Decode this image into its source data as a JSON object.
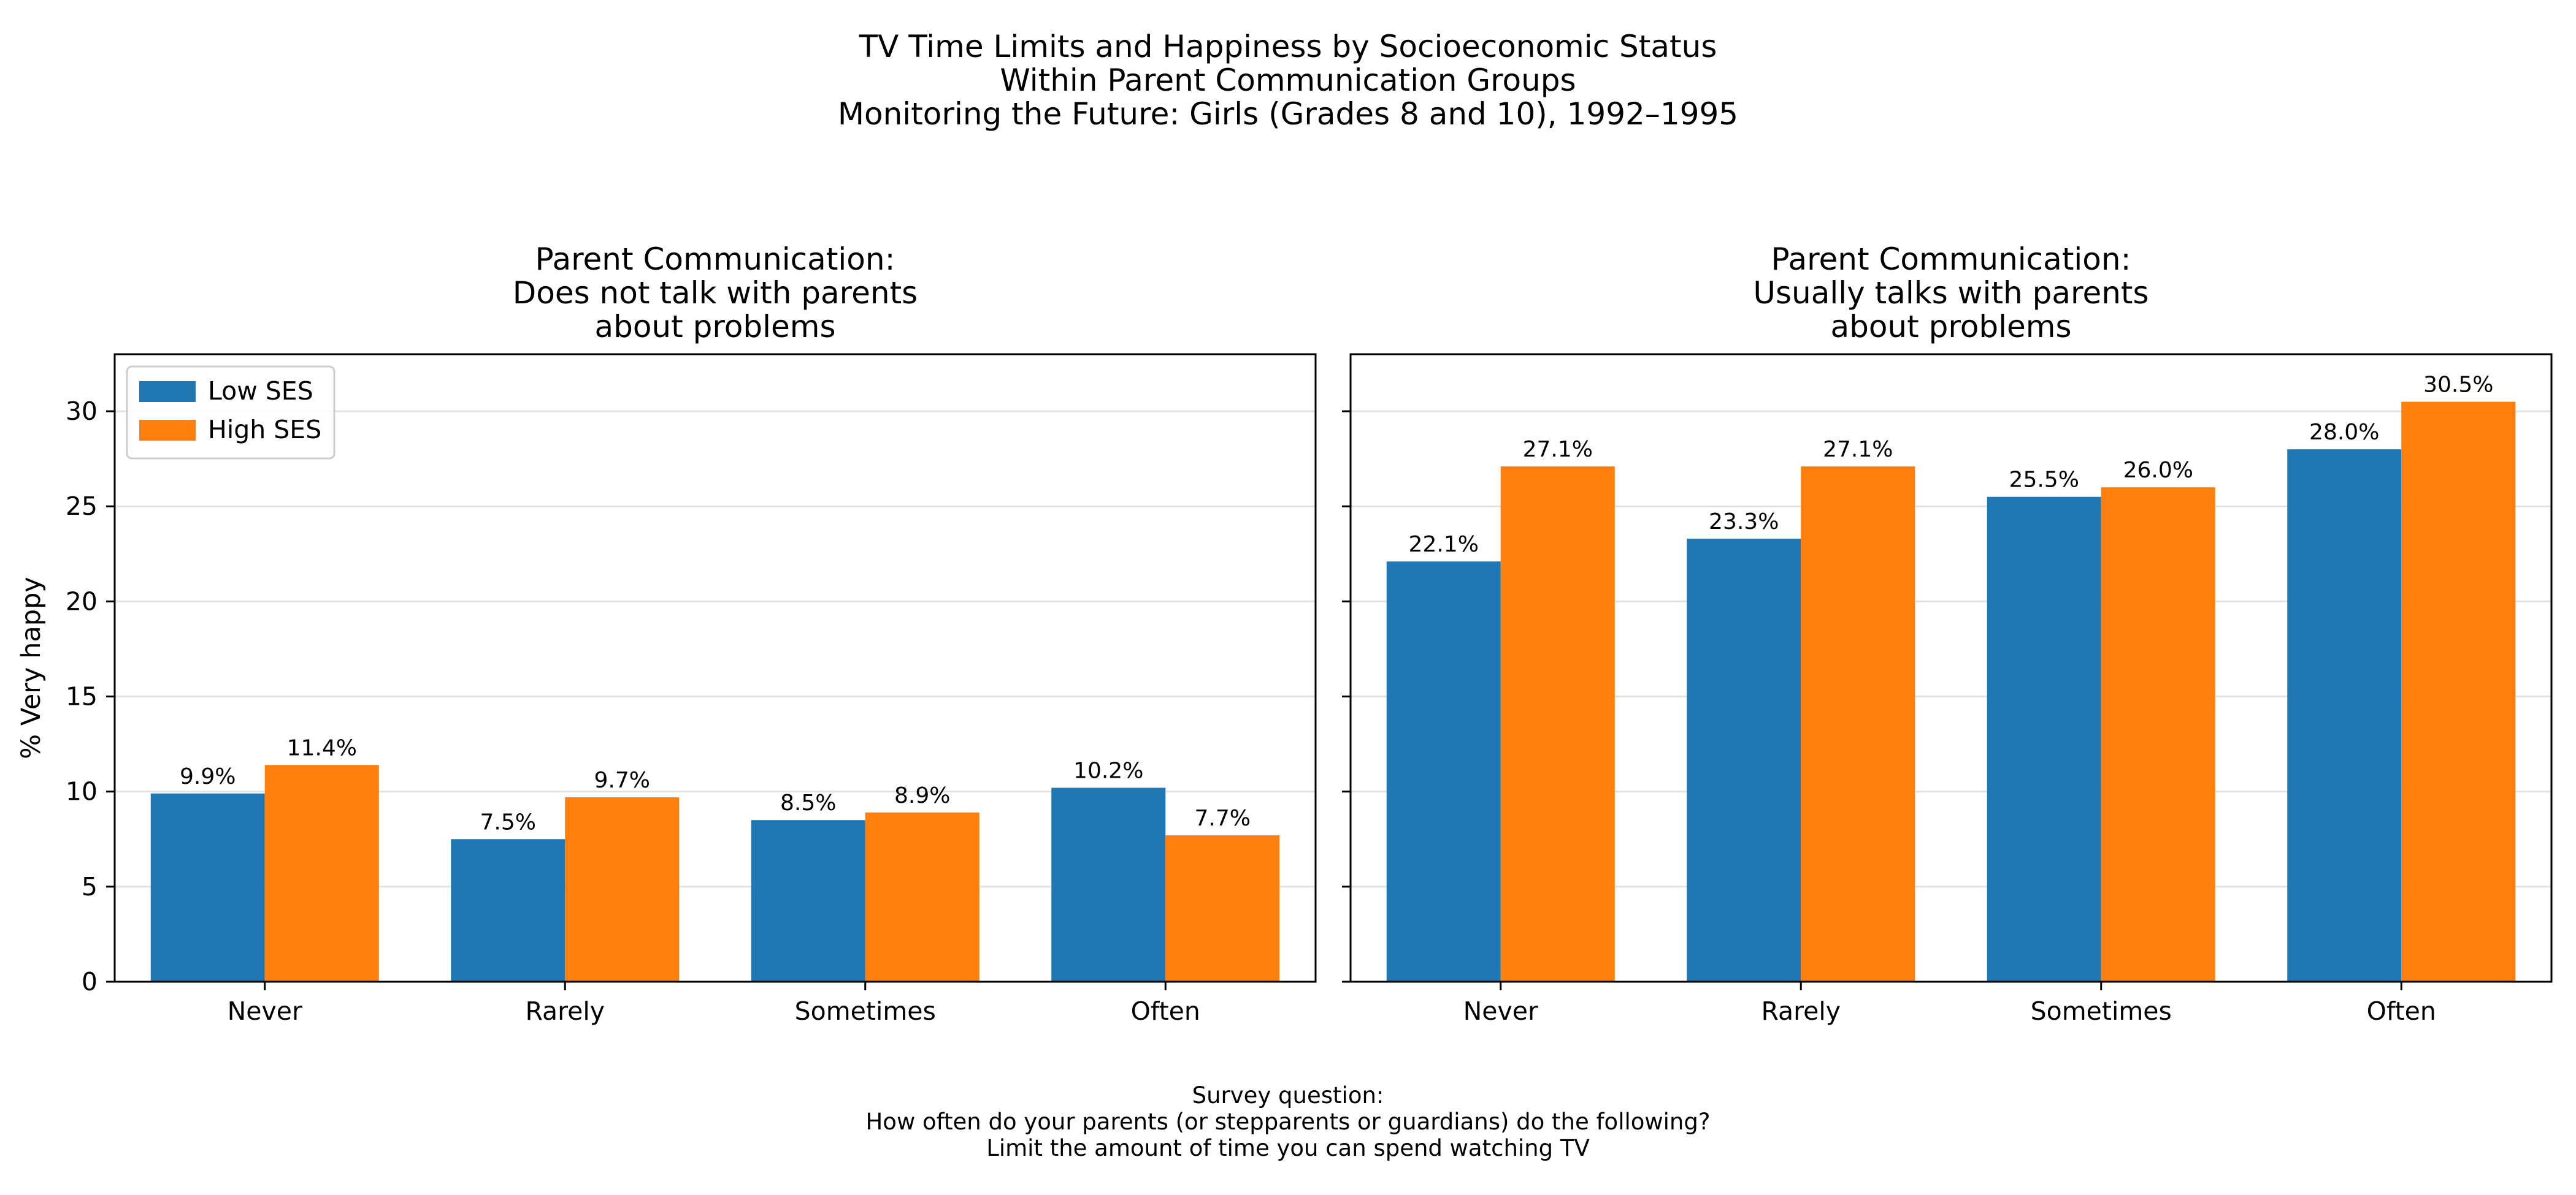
{
  "title_lines": [
    "TV Time Limits and Happiness by Socioeconomic Status",
    "Within Parent Communication Groups",
    "Monitoring the Future: Girls (Grades 8 and 10), 1992–1995"
  ],
  "caption_lines": [
    "Survey question:",
    "How often do your parents (or stepparents or guardians) do the following?",
    "Limit the amount of time you can spend watching TV"
  ],
  "colors": {
    "low_ses": "#1f77b4",
    "high_ses": "#ff7f0e"
  },
  "chart_data": [
    {
      "type": "bar",
      "title_lines": [
        "Parent Communication:",
        "Does not talk with parents",
        "about problems"
      ],
      "categories": [
        "Never",
        "Rarely",
        "Sometimes",
        "Often"
      ],
      "series": [
        {
          "name": "Low SES",
          "values": [
            9.9,
            7.5,
            8.5,
            10.2
          ],
          "labels": [
            "9.9%",
            "7.5%",
            "8.5%",
            "10.2%"
          ]
        },
        {
          "name": "High SES",
          "values": [
            11.4,
            9.7,
            8.9,
            7.7
          ],
          "labels": [
            "11.4%",
            "9.7%",
            "8.9%",
            "7.7%"
          ]
        }
      ],
      "ylabel": "% Very happy",
      "ylim": [
        0,
        33
      ],
      "yticks": [
        0,
        5,
        10,
        15,
        20,
        25,
        30
      ],
      "grid": true,
      "legend": "top-left"
    },
    {
      "type": "bar",
      "title_lines": [
        "Parent Communication:",
        "Usually talks with parents",
        "about problems"
      ],
      "categories": [
        "Never",
        "Rarely",
        "Sometimes",
        "Often"
      ],
      "series": [
        {
          "name": "Low SES",
          "values": [
            22.1,
            23.3,
            25.5,
            28.0
          ],
          "labels": [
            "22.1%",
            "23.3%",
            "25.5%",
            "28.0%"
          ]
        },
        {
          "name": "High SES",
          "values": [
            27.1,
            27.1,
            26.0,
            30.5
          ],
          "labels": [
            "27.1%",
            "27.1%",
            "26.0%",
            "30.5%"
          ]
        }
      ],
      "ylabel": "",
      "ylim": [
        0,
        33
      ],
      "yticks": [
        0,
        5,
        10,
        15,
        20,
        25,
        30
      ],
      "grid": true,
      "legend": "none"
    }
  ]
}
